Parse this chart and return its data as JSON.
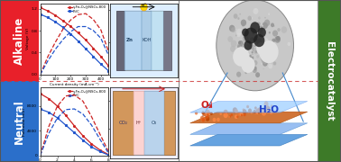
{
  "alkaline_label": "Alkaline",
  "neutral_label": "Neutral",
  "electrocatalyst_label": "Electrocatalyst",
  "alkaline_color": "#e8202a",
  "neutral_color": "#2b6fca",
  "green_color": "#3d7a28",
  "alk_legend1": "γ-Fe₂O₃@NSCs-800",
  "alk_legend2": "Pt/C",
  "neut_legend1": "γ-Fe₂O₃@NSCs-800",
  "neut_legend2": "Pt/C",
  "alk_cd": [
    0,
    50,
    100,
    150,
    200,
    250,
    300,
    350,
    400,
    450
  ],
  "alk_voltage_fe": [
    1.22,
    1.16,
    1.08,
    0.98,
    0.88,
    0.76,
    0.63,
    0.48,
    0.33,
    0.16
  ],
  "alk_voltage_pt": [
    1.1,
    1.04,
    0.96,
    0.86,
    0.74,
    0.61,
    0.47,
    0.33,
    0.19,
    0.07
  ],
  "alk_power_fe": [
    0,
    55,
    100,
    140,
    168,
    185,
    188,
    170,
    138,
    72
  ],
  "alk_power_pt": [
    0,
    42,
    78,
    108,
    132,
    148,
    148,
    136,
    112,
    60
  ],
  "alk_ylim_v": [
    0.0,
    1.3
  ],
  "alk_ylim_p": [
    0,
    220
  ],
  "neut_cd": [
    0,
    1,
    2,
    3,
    4,
    5,
    6,
    7,
    8
  ],
  "neut_voltage_fe": [
    10000,
    9200,
    8000,
    6500,
    4800,
    3200,
    1900,
    900,
    150
  ],
  "neut_voltage_pt": [
    7500,
    7000,
    6100,
    4900,
    3700,
    2500,
    1400,
    650,
    80
  ],
  "neut_power_fe": [
    0,
    8500,
    14500,
    17500,
    17800,
    16000,
    11500,
    6300,
    1200
  ],
  "neut_power_pt": [
    0,
    6500,
    11000,
    13500,
    13700,
    12200,
    9000,
    4800,
    720
  ],
  "neut_ylim_v": [
    0,
    11000
  ],
  "neut_ylim_p": [
    0,
    20000
  ]
}
